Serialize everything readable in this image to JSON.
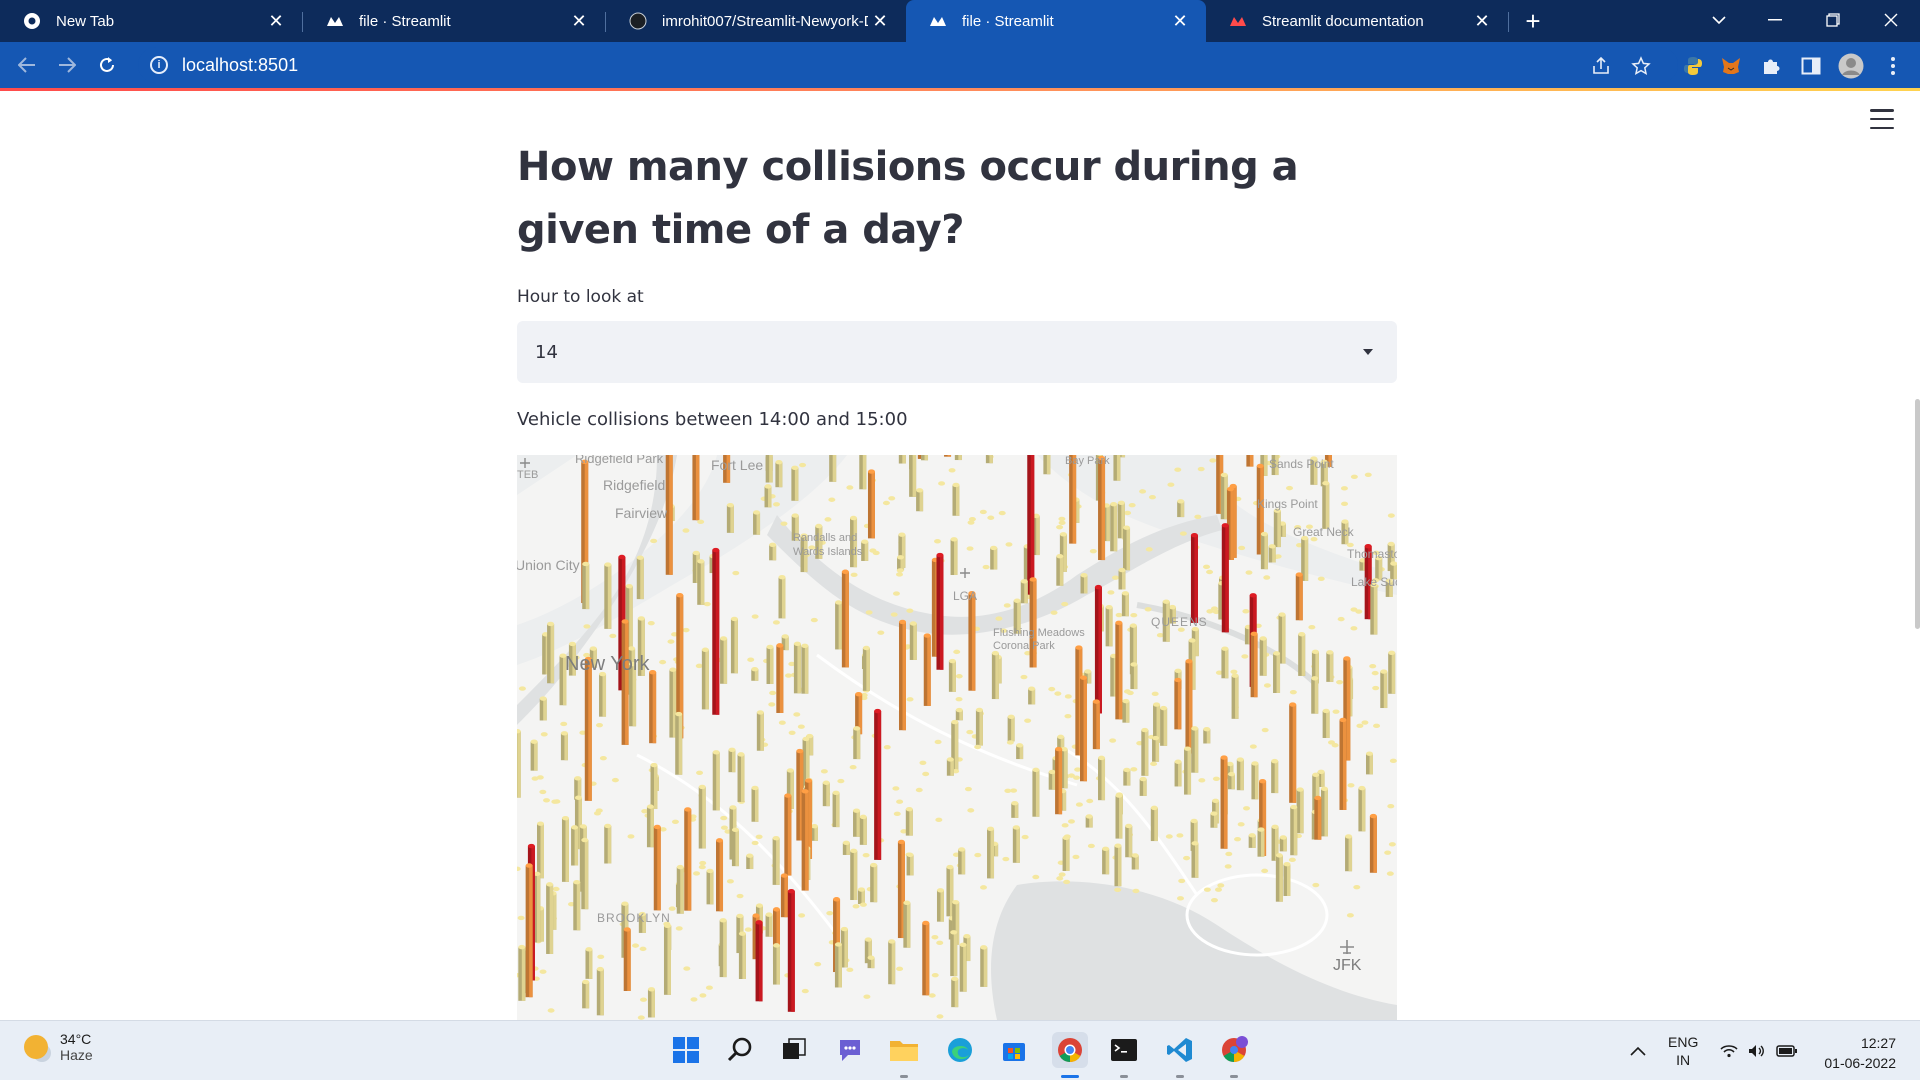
{
  "browser": {
    "tabs": [
      {
        "title": "New Tab",
        "icon": "chrome-icon",
        "active": false
      },
      {
        "title": "file · Streamlit",
        "icon": "streamlit-icon",
        "active": false
      },
      {
        "title": "imrohit007/Streamlit-Newyork-D",
        "icon": "github-icon",
        "active": false
      },
      {
        "title": "file · Streamlit",
        "icon": "streamlit-icon",
        "active": true
      },
      {
        "title": "Streamlit documentation",
        "icon": "streamlit-icon",
        "active": false
      }
    ],
    "url": "localhost:8501"
  },
  "page": {
    "title": "How many collisions occur during a given time of a day?",
    "hour_label": "Hour to look at",
    "hour_value": "14",
    "subtitle": "Vehicle collisions between 14:00 and 15:00"
  },
  "map": {
    "labels": [
      "Ridgefield Park",
      "Fort Lee",
      "Ridgefield",
      "Fairview",
      "Union City",
      "New York",
      "Randalls and Wards Islands",
      "LGA",
      "Flushing Meadows Corona Park",
      "QUEENS",
      "Bay Park",
      "Sands Point",
      "Kings Point",
      "Great Neck",
      "Thomaston",
      "Lake Success",
      "BROOKLYN",
      "JFK",
      "TEB"
    ]
  },
  "taskbar": {
    "temperature": "34°C",
    "condition": "Haze",
    "lang_top": "ENG",
    "lang_bottom": "IN",
    "time": "12:27",
    "date": "01-06-2022"
  },
  "colors": {
    "chrome_dark": "#0d2b5b",
    "chrome_active": "#1557b3",
    "text": "#31333f",
    "select_bg": "#f0f2f6",
    "bar_low": "#d4c98a",
    "bar_mid": "#e08a3c",
    "bar_high": "#c1181f"
  }
}
